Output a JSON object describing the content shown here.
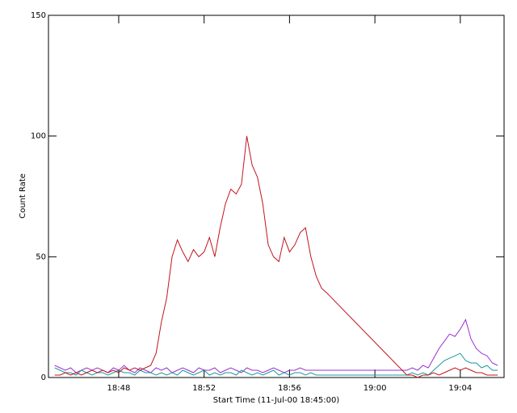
{
  "chart_data": {
    "type": "line",
    "xlabel": "Start Time (11-Jul-00 18:45:00)",
    "ylabel": "Count Rate",
    "x": [
      0,
      0.25,
      0.5,
      0.75,
      1,
      1.25,
      1.5,
      1.75,
      2,
      2.25,
      2.5,
      2.75,
      3,
      3.25,
      3.5,
      3.75,
      4,
      4.25,
      4.5,
      4.75,
      5,
      5.25,
      5.5,
      5.75,
      6,
      6.25,
      6.5,
      6.75,
      7,
      7.25,
      7.5,
      7.75,
      8,
      8.25,
      8.5,
      8.75,
      9,
      9.25,
      9.5,
      9.75,
      10,
      10.25,
      10.5,
      10.75,
      11,
      11.25,
      11.5,
      11.75,
      12,
      12.25,
      12.5,
      12.75,
      16.5,
      16.75,
      17,
      17.25,
      17.5,
      17.75,
      18,
      18.25,
      18.5,
      18.75,
      19,
      19.25,
      19.5,
      19.75,
      20,
      20.25,
      20.5,
      20.75
    ],
    "series": [
      {
        "color": "#9b30d0",
        "values": [
          5,
          4,
          3,
          4,
          2,
          3,
          4,
          3,
          4,
          3,
          2,
          4,
          3,
          5,
          3,
          2,
          4,
          3,
          2,
          4,
          3,
          4,
          2,
          3,
          4,
          3,
          2,
          4,
          3,
          3,
          4,
          2,
          3,
          4,
          3,
          2,
          4,
          3,
          3,
          2,
          3,
          4,
          3,
          2,
          3,
          3,
          4,
          3,
          3,
          3,
          3,
          3,
          3,
          4,
          3,
          5,
          4,
          8,
          12,
          15,
          18,
          17,
          20,
          24,
          16,
          12,
          10,
          9,
          6,
          5
        ]
      },
      {
        "color": "#1a9a9a",
        "values": [
          4,
          3,
          2,
          2,
          1,
          3,
          2,
          1,
          2,
          2,
          1,
          2,
          3,
          2,
          2,
          1,
          3,
          2,
          2,
          1,
          2,
          1,
          2,
          1,
          3,
          2,
          1,
          2,
          3,
          1,
          2,
          1,
          2,
          2,
          1,
          3,
          2,
          1,
          2,
          1,
          2,
          3,
          1,
          2,
          1,
          2,
          2,
          1,
          2,
          1,
          1,
          1,
          1,
          2,
          1,
          2,
          1,
          3,
          5,
          7,
          8,
          9,
          10,
          7,
          6,
          6,
          4,
          5,
          3,
          3
        ]
      },
      {
        "color": "#c0141e",
        "values": [
          1,
          1,
          2,
          1,
          2,
          1,
          2,
          3,
          2,
          3,
          2,
          3,
          2,
          4,
          3,
          4,
          3,
          4,
          5,
          10,
          23,
          33,
          50,
          57,
          52,
          48,
          53,
          50,
          52,
          58,
          50,
          62,
          72,
          78,
          76,
          80,
          100,
          88,
          83,
          72,
          55,
          50,
          48,
          58,
          52,
          55,
          60,
          62,
          50,
          42,
          37,
          35,
          1,
          1,
          0,
          1,
          1,
          2,
          1,
          2,
          3,
          4,
          3,
          4,
          3,
          2,
          2,
          1,
          1,
          1
        ]
      }
    ],
    "xlim": [
      -0.29,
      21.05
    ],
    "xticks": [
      {
        "value": 3,
        "label": "18:48"
      },
      {
        "value": 7,
        "label": "18:52"
      },
      {
        "value": 11,
        "label": "18:56"
      },
      {
        "value": 15,
        "label": "19:00"
      },
      {
        "value": 19,
        "label": "19:04"
      }
    ],
    "ylim": [
      0,
      150
    ],
    "yticks": [
      0,
      50,
      100,
      150
    ]
  }
}
